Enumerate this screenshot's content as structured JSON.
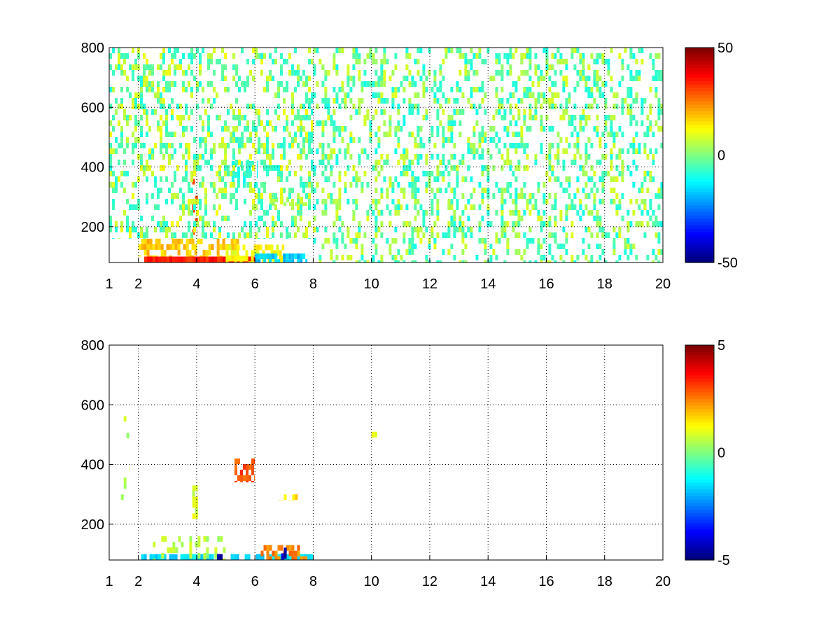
{
  "chart_data": [
    {
      "type": "heatmap",
      "title": "",
      "xlabel": "",
      "ylabel": "",
      "xlim": [
        1,
        20
      ],
      "ylim": [
        80,
        800
      ],
      "x_ticks": [
        1,
        2,
        4,
        6,
        8,
        10,
        12,
        14,
        16,
        18,
        20
      ],
      "y_ticks": [
        200,
        400,
        600,
        800
      ],
      "grid": true,
      "colormap": "jet",
      "colorbar": {
        "min": -50,
        "max": 50,
        "ticks": [
          50,
          0,
          -50
        ]
      },
      "background_color": "#ffffff",
      "features": [
        {
          "x": [
            2.2,
            6.0
          ],
          "y": [
            80,
            100
          ],
          "value": 35,
          "density": 0.9
        },
        {
          "x": [
            2.0,
            5.5
          ],
          "y": [
            100,
            160
          ],
          "value": 18,
          "density": 0.6
        },
        {
          "x": [
            5.0,
            7.0
          ],
          "y": [
            80,
            140
          ],
          "value": 12,
          "density": 0.5
        },
        {
          "x": [
            6.0,
            7.8
          ],
          "y": [
            80,
            110
          ],
          "value": -18,
          "density": 0.7
        },
        {
          "x": [
            3.85,
            4.05
          ],
          "y": [
            170,
            360
          ],
          "value": 30,
          "density": 0.6
        },
        {
          "x": [
            5.2,
            6.1
          ],
          "y": [
            330,
            420
          ],
          "value": -10,
          "density": 0.5
        },
        {
          "x": [
            6.5,
            7.8
          ],
          "y": [
            270,
            300
          ],
          "value": 5,
          "density": 0.5
        },
        {
          "x": [
            1.0,
            8.0
          ],
          "y": [
            160,
            800
          ],
          "value": -6,
          "density": 0.22
        },
        {
          "x": [
            1.0,
            8.0
          ],
          "y": [
            160,
            800
          ],
          "value": 8,
          "density": 0.12
        },
        {
          "x": [
            8.0,
            20.0
          ],
          "y": [
            80,
            800
          ],
          "value": -7,
          "density": 0.2
        },
        {
          "x": [
            8.0,
            20.0
          ],
          "y": [
            80,
            800
          ],
          "value": 6,
          "density": 0.14
        }
      ]
    },
    {
      "type": "heatmap",
      "title": "",
      "xlabel": "",
      "ylabel": "",
      "xlim": [
        1,
        20
      ],
      "ylim": [
        80,
        800
      ],
      "x_ticks": [
        1,
        2,
        4,
        6,
        8,
        10,
        12,
        14,
        16,
        18,
        20
      ],
      "y_ticks": [
        200,
        400,
        600,
        800
      ],
      "grid": true,
      "colormap": "jet",
      "colorbar": {
        "min": -5,
        "max": 5,
        "ticks": [
          5,
          0,
          -5
        ]
      },
      "background_color": "#ffffff",
      "features": [
        {
          "x": [
            2.0,
            8.0
          ],
          "y": [
            80,
            100
          ],
          "value": -1.5,
          "density": 0.75
        },
        {
          "x": [
            2.5,
            5.0
          ],
          "y": [
            80,
            160
          ],
          "value": 0.5,
          "density": 0.3
        },
        {
          "x": [
            6.2,
            7.8
          ],
          "y": [
            80,
            130
          ],
          "value": 2.5,
          "density": 0.6
        },
        {
          "x": [
            6.9,
            7.1
          ],
          "y": [
            80,
            140
          ],
          "value": -4.5,
          "density": 0.5
        },
        {
          "x": [
            4.7,
            4.9
          ],
          "y": [
            80,
            100
          ],
          "value": -4.8,
          "density": 0.6
        },
        {
          "x": [
            3.85,
            4.05
          ],
          "y": [
            200,
            330
          ],
          "value": 0.8,
          "density": 0.6
        },
        {
          "x": [
            5.3,
            6.0
          ],
          "y": [
            340,
            420
          ],
          "value": 3.0,
          "density": 0.45
        },
        {
          "x": [
            6.8,
            7.7
          ],
          "y": [
            280,
            300
          ],
          "value": 1.5,
          "density": 0.5
        },
        {
          "x": [
            1.4,
            1.7
          ],
          "y": [
            280,
            600
          ],
          "value": 0.5,
          "density": 0.05
        },
        {
          "x": [
            10.0,
            10.2
          ],
          "y": [
            490,
            510
          ],
          "value": 0.8,
          "density": 0.5
        }
      ]
    }
  ]
}
